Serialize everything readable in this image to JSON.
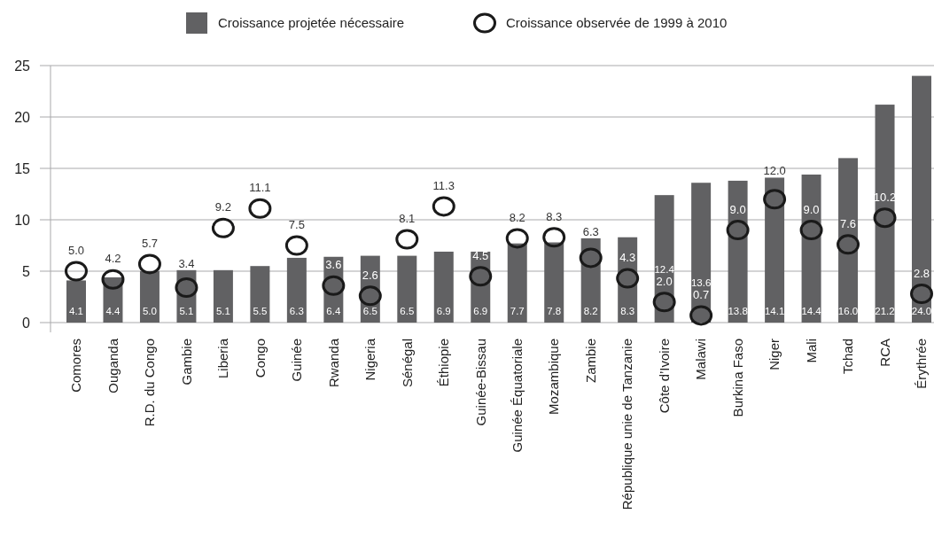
{
  "chart_data": {
    "type": "bar",
    "categories": [
      "Comores",
      "Ouganda",
      "R.D. du Congo",
      "Gambie",
      "Liberia",
      "Congo",
      "Guinée",
      "Rwanda",
      "Nigeria",
      "Sénégal",
      "Éthiopie",
      "Guinée-Bissau",
      "Guinée Équatoriale",
      "Mozambique",
      "Zambie",
      "République unie de Tanzanie",
      "Côte d’Ivoire",
      "Malawi",
      "Burkina Faso",
      "Niger",
      "Mali",
      "Tchad",
      "RCA",
      "Érythrée"
    ],
    "series": [
      {
        "name": "Croissance projetée nécessaire",
        "color": "#616163",
        "values": [
          4.1,
          4.4,
          5.0,
          5.1,
          5.1,
          5.5,
          6.3,
          6.4,
          6.5,
          6.5,
          6.9,
          6.9,
          7.7,
          7.8,
          8.2,
          8.3,
          12.4,
          13.6,
          13.8,
          14.1,
          14.4,
          16.0,
          21.2,
          24.0
        ],
        "value_labels": [
          "4.1",
          "4.4",
          "5.0",
          "5.1",
          "5.1",
          "5.5",
          "6.3",
          "6.4",
          "6.5",
          "6.5",
          "6.9",
          "6.9",
          "7.7",
          "7.8",
          "8.2",
          "8.3",
          "12.4",
          "13.6",
          "13.8",
          "14.1",
          "14.4",
          "16.0",
          "21.2",
          "24.0"
        ]
      },
      {
        "name": "Croissance observée de 1999 à 2010",
        "type": "scatter",
        "color": "#1a1a1a",
        "values": [
          5.0,
          4.2,
          5.7,
          3.4,
          9.2,
          11.1,
          7.5,
          3.6,
          2.6,
          8.1,
          11.3,
          4.5,
          8.2,
          8.3,
          6.3,
          4.3,
          2.0,
          0.7,
          9.0,
          12.0,
          9.0,
          7.6,
          10.2,
          2.8
        ],
        "value_labels": [
          "5.0",
          "4.2",
          "5.7",
          "3.4",
          "9.2",
          "11.1",
          "7.5",
          "3.6",
          "2.6",
          "8.1",
          "11.3",
          "4.5",
          "8.2",
          "8.3",
          "6.3",
          "4.3",
          "2.0",
          "0.7",
          "9.0",
          "12.0",
          "9.0",
          "7.6",
          "10.2",
          "2.8"
        ]
      }
    ],
    "ylim": [
      0,
      25
    ],
    "yticks": [
      0,
      5,
      10,
      15,
      20,
      25
    ],
    "grid": "y",
    "legend": "top",
    "marker": "circle"
  }
}
